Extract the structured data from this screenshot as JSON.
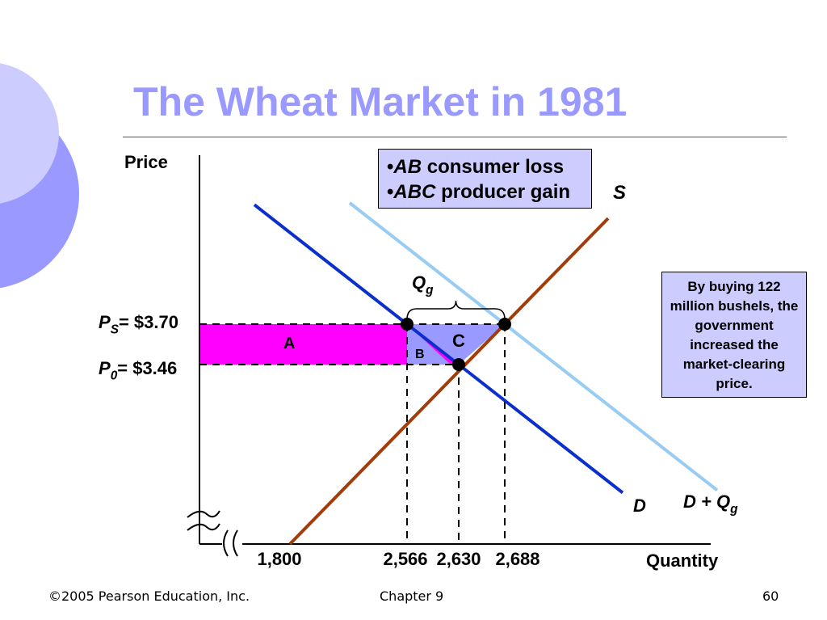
{
  "slide": {
    "title": "The Wheat Market in 1981",
    "footer": {
      "copyright": "©2005 Pearson Education, Inc.",
      "chapter": "Chapter 9",
      "page": "60"
    }
  },
  "legend_box": {
    "line1_em": "AB",
    "line1_rest": " consumer loss",
    "line2_em": "ABC",
    "line2_rest": " producer gain"
  },
  "note_box": {
    "text": "By buying 122 million bushels, the government increased the market-clearing price."
  },
  "colors": {
    "title": "#9999ff",
    "demand": "#0a2fcc",
    "demand_plus_qg": "#99ccf2",
    "supply": "#a23c0a",
    "area_A": "#ff00ff",
    "area_BC": "#9999ff",
    "box_fill": "#ccccff"
  },
  "chart_data": {
    "type": "line",
    "xlabel": "Quantity",
    "ylabel": "Price",
    "x_ticks": [
      "1,800",
      "2,566",
      "2,630",
      "2,688"
    ],
    "x_tick_values": [
      1800,
      2566,
      2630,
      2688
    ],
    "price_labels": {
      "ps_main": "P",
      "ps_sub": "S",
      "ps_value": "= $3.70",
      "p0_main": "P",
      "p0_sub": "0",
      "p0_value": "= $3.46"
    },
    "price_values": {
      "PS": 3.7,
      "P0": 3.46
    },
    "series": [
      {
        "name": "S",
        "label": "S",
        "points": [
          [
            1800,
            3.0
          ],
          [
            2630,
            3.46
          ],
          [
            2688,
            3.7
          ]
        ]
      },
      {
        "name": "D",
        "label": "D",
        "points": [
          [
            2566,
            3.7
          ],
          [
            2630,
            3.46
          ]
        ]
      },
      {
        "name": "D + Qg",
        "label_main": "D + Q",
        "label_sub": "g",
        "points": [
          [
            2688,
            3.7
          ]
        ]
      }
    ],
    "qg": {
      "main": "Q",
      "sub": "g",
      "from": 2566,
      "to": 2688
    },
    "areas": {
      "A": "A",
      "B": "B",
      "C": "C"
    },
    "points": [
      {
        "q": 2566,
        "p": 3.7
      },
      {
        "q": 2688,
        "p": 3.7
      },
      {
        "q": 2630,
        "p": 3.46
      }
    ]
  }
}
